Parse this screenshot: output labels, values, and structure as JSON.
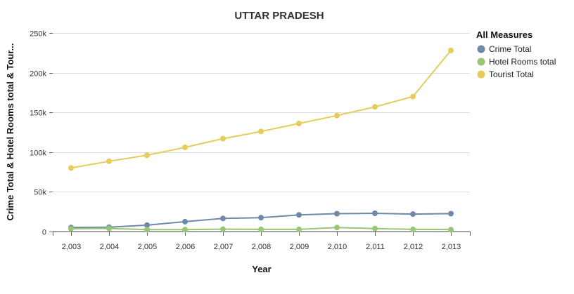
{
  "chart_data": {
    "type": "line",
    "title": "UTTAR PRADESH",
    "xlabel": "Year",
    "ylabel": "Crime Total & Hotel Rooms total & Tour...",
    "x": [
      "2,003",
      "2,004",
      "2,005",
      "2,006",
      "2,007",
      "2,008",
      "2,009",
      "2,010",
      "2,011",
      "2,012",
      "2,013"
    ],
    "ylim": [
      0,
      250000
    ],
    "yticks": [
      0,
      50000,
      100000,
      150000,
      200000,
      250000
    ],
    "ytick_labels": [
      "0",
      "50k",
      "100k",
      "150k",
      "200k",
      "250k"
    ],
    "grid": "horizontal",
    "legend_position": "right",
    "legend_title": "All Measures",
    "series": [
      {
        "name": "Crime Total",
        "color": "#7088ab",
        "values": [
          5000,
          5500,
          8000,
          12500,
          16500,
          17500,
          21000,
          22500,
          23000,
          22000,
          22500
        ]
      },
      {
        "name": "Hotel Rooms total",
        "color": "#96c676",
        "values": [
          3500,
          4000,
          2500,
          2500,
          3000,
          2700,
          2700,
          5000,
          3800,
          2700,
          2500
        ]
      },
      {
        "name": "Tourist Total",
        "color": "#e8cc5a",
        "values": [
          80000,
          88500,
          96000,
          106000,
          117000,
          126000,
          136000,
          146000,
          157000,
          170000,
          228000
        ]
      }
    ]
  }
}
